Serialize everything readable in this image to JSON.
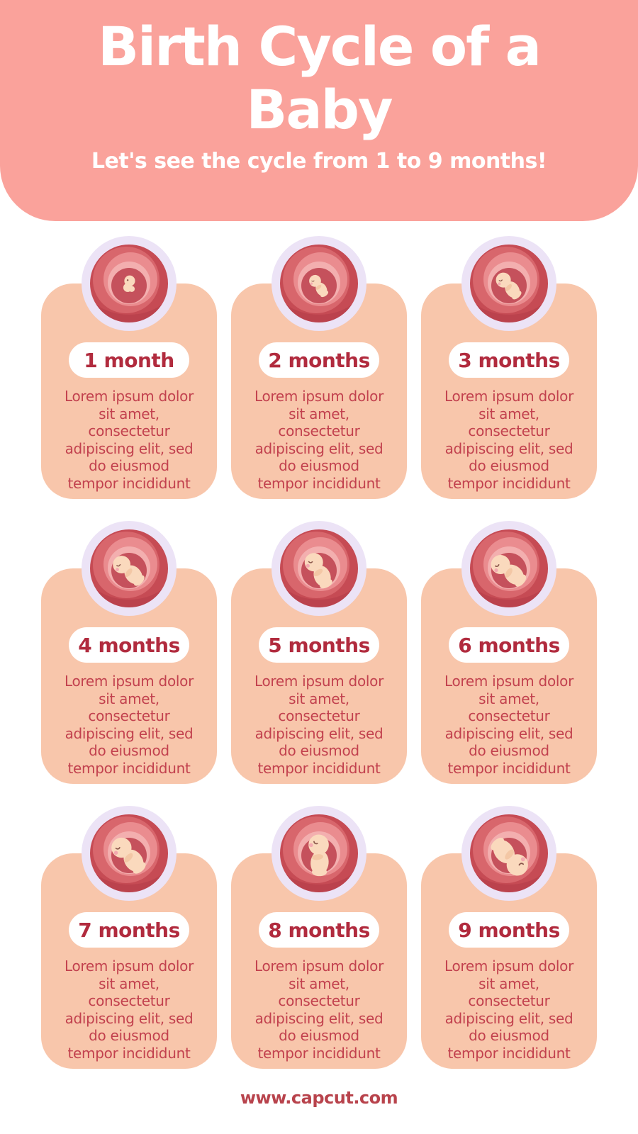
{
  "header": {
    "title_line1": "Birth Cycle of a",
    "title_line2": "Baby",
    "title": "Birth Cycle of a Baby",
    "subtitle": "Let's see the cycle from 1 to 9 months!",
    "background_color": "#FAA29B",
    "text_color": "#FFFFFF"
  },
  "colors": {
    "card_background": "#F8C6AB",
    "pill_background": "#FFFFFF",
    "month_text": "#B12B3E",
    "body_text": "#C2414E",
    "footer_text": "#B8434C",
    "womb_ring": "#ECE3F6",
    "womb_base": "#C64B54",
    "womb_mid": "#D8666C",
    "womb_light": "#EA8C8F",
    "womb_lighter": "#F3AFAF",
    "womb_cavity": "#C5515C",
    "womb_accent": "#AF3A45",
    "fetus_skin": "#FAD9BD",
    "fetus_shade": "#F2C4A2",
    "fetus_cheek": "#F3A9B0",
    "fetus_eye": "#8A574B"
  },
  "cards": [
    {
      "month_label": "1 month",
      "illustration": "embryo-1-month",
      "body": "Lorem ipsum dolor\nsit amet,\nconsectetur\nadipiscing elit, sed\ndo eiusmod\ntempor incididunt"
    },
    {
      "month_label": "2 months",
      "illustration": "fetus-2-months",
      "body": "Lorem ipsum dolor\nsit amet,\nconsectetur\nadipiscing elit, sed\ndo eiusmod\ntempor incididunt"
    },
    {
      "month_label": "3 months",
      "illustration": "fetus-3-months",
      "body": "Lorem ipsum dolor\nsit amet,\nconsectetur\nadipiscing elit, sed\ndo eiusmod\ntempor incididunt"
    },
    {
      "month_label": "4 months",
      "illustration": "fetus-4-months",
      "body": "Lorem ipsum dolor\nsit amet,\nconsectetur\nadipiscing elit, sed\ndo eiusmod\ntempor incididunt"
    },
    {
      "month_label": "5 months",
      "illustration": "fetus-5-months",
      "body": "Lorem ipsum dolor\nsit amet,\nconsectetur\nadipiscing elit, sed\ndo eiusmod\ntempor incididunt"
    },
    {
      "month_label": "6 months",
      "illustration": "fetus-6-months",
      "body": "Lorem ipsum dolor\nsit amet,\nconsectetur\nadipiscing elit, sed\ndo eiusmod\ntempor incididunt"
    },
    {
      "month_label": "7 months",
      "illustration": "fetus-7-months",
      "body": "Lorem ipsum dolor\nsit amet,\nconsectetur\nadipiscing elit, sed\ndo eiusmod\ntempor incididunt"
    },
    {
      "month_label": "8 months",
      "illustration": "fetus-8-months",
      "body": "Lorem ipsum dolor\nsit amet,\nconsectetur\nadipiscing elit, sed\ndo eiusmod\ntempor incididunt"
    },
    {
      "month_label": "9 months",
      "illustration": "fetus-9-months",
      "body": "Lorem ipsum dolor\nsit amet,\nconsectetur\nadipiscing elit, sed\ndo eiusmod\ntempor incididunt"
    }
  ],
  "footer": {
    "url_label": "www.capcut.com"
  }
}
